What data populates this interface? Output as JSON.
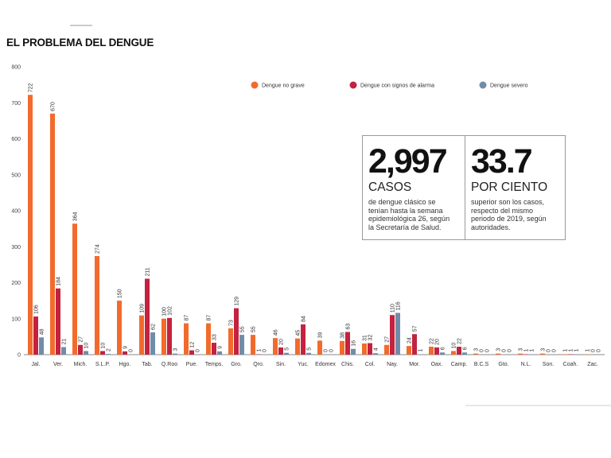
{
  "chart_data": {
    "type": "bar",
    "title": "EL PROBLEMA DEL DENGUE",
    "xlabel": "",
    "ylabel": "",
    "categories": [
      "Jal.",
      "Ver.",
      "Mich.",
      "S.L.P.",
      "Hgo.",
      "Tab.",
      "Q.Roo",
      "Pue.",
      "Temps.",
      "Gro.",
      "Qro.",
      "Sin.",
      "Yuc.",
      "Edomex",
      "Chis.",
      "Col.",
      "Nay.",
      "Mor.",
      "Oax.",
      "Camp.",
      "B.C.S",
      "Gto.",
      "N.L.",
      "Son.",
      "Coah.",
      "Zac."
    ],
    "series": [
      {
        "name": "Dengue no grave",
        "color": "#F26B2C",
        "values": [
          722,
          670,
          364,
          274,
          150,
          109,
          100,
          87,
          87,
          73,
          55,
          46,
          45,
          39,
          38,
          31,
          27,
          24,
          22,
          10,
          3,
          3,
          3,
          3,
          1,
          1
        ]
      },
      {
        "name": "Dengue con signos de alarma",
        "color": "#C32240",
        "values": [
          106,
          184,
          27,
          10,
          9,
          211,
          102,
          12,
          33,
          129,
          1,
          20,
          84,
          0,
          63,
          32,
          110,
          57,
          20,
          22,
          0,
          0,
          1,
          0,
          1,
          0
        ]
      },
      {
        "name": "Dengue severo",
        "color": "#6F8DA8",
        "values": [
          48,
          21,
          10,
          2,
          0,
          62,
          3,
          0,
          9,
          55,
          0,
          5,
          5,
          0,
          16,
          4,
          116,
          1,
          6,
          6,
          0,
          0,
          1,
          0,
          1,
          0
        ]
      }
    ],
    "ylim": [
      0,
      800
    ],
    "yticks": [
      0,
      100,
      200,
      300,
      400,
      500,
      600,
      700,
      800
    ],
    "grid": false,
    "legend_position": "top-right",
    "data_labels": true
  },
  "highlights": [
    {
      "value": "2,997",
      "unit": "CASOS",
      "lines": [
        "de dengue clásico se",
        "tenían hasta la semana",
        "epidemiológica 26, según",
        "la Secretaría de Salud."
      ]
    },
    {
      "value": "33.7",
      "unit": "POR CIENTO",
      "lines": [
        "superior son los casos,",
        "respecto del mismo",
        "periodo de 2019, según",
        "autoridades."
      ]
    }
  ]
}
